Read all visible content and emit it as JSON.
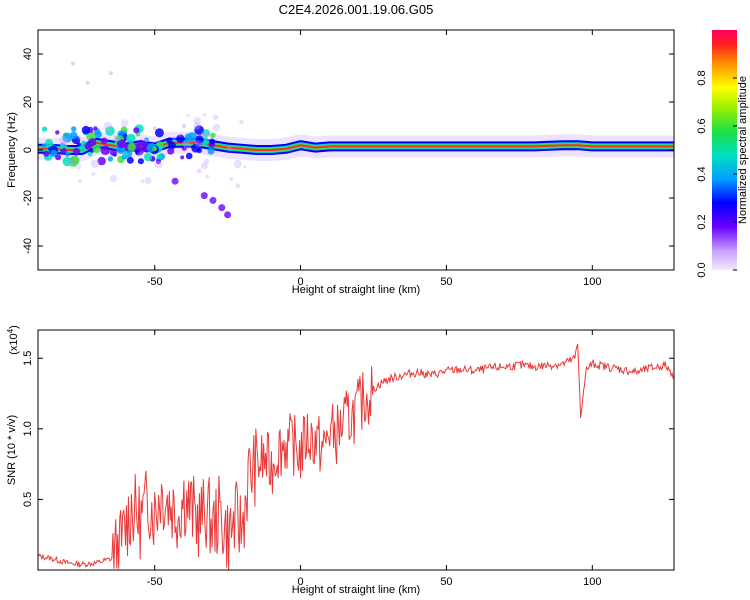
{
  "title": "C2E4.2026.001.19.06.G05",
  "colors": {
    "snr_line": "#e83a3a",
    "frequency_trace": "#ff2a2a",
    "frame": "#000000"
  },
  "chart_data": [
    {
      "type": "heatmap",
      "name": "spectrogram",
      "xlabel": "Height of straight line (km)",
      "ylabel": "Frequency (Hz)",
      "xlim": [
        -90,
        128
      ],
      "ylim": [
        -50,
        50
      ],
      "xticks": [
        -50,
        0,
        50,
        100
      ],
      "yticks": [
        -40,
        -20,
        0,
        20,
        40
      ],
      "colorbar": {
        "label": "Normalized spectral amplitude",
        "range": [
          0,
          1
        ],
        "ticks": [
          "0.0",
          "0.2",
          "0.4",
          "0.6",
          "0.8"
        ],
        "tick_values": [
          0,
          0.2,
          0.4,
          0.6,
          0.8
        ]
      },
      "dominant_frequency_trace": [
        {
          "x": -90,
          "y": 0.5
        },
        {
          "x": -85,
          "y": 0.5
        },
        {
          "x": -80,
          "y": 0
        },
        {
          "x": -75,
          "y": 0
        },
        {
          "x": -70,
          "y": 3
        },
        {
          "x": -65,
          "y": 2
        },
        {
          "x": -60,
          "y": 1
        },
        {
          "x": -55,
          "y": 2
        },
        {
          "x": -50,
          "y": 1
        },
        {
          "x": -45,
          "y": 3
        },
        {
          "x": -40,
          "y": 3
        },
        {
          "x": -35,
          "y": 3
        },
        {
          "x": -30,
          "y": 2
        },
        {
          "x": -25,
          "y": 1
        },
        {
          "x": -20,
          "y": 0.5
        },
        {
          "x": -15,
          "y": 0
        },
        {
          "x": -10,
          "y": 0
        },
        {
          "x": -5,
          "y": 0.5
        },
        {
          "x": 0,
          "y": 2
        },
        {
          "x": 5,
          "y": 1
        },
        {
          "x": 10,
          "y": 1.5
        },
        {
          "x": 20,
          "y": 1.5
        },
        {
          "x": 30,
          "y": 1.5
        },
        {
          "x": 40,
          "y": 1.5
        },
        {
          "x": 50,
          "y": 1.5
        },
        {
          "x": 60,
          "y": 1.5
        },
        {
          "x": 70,
          "y": 1.5
        },
        {
          "x": 80,
          "y": 1.5
        },
        {
          "x": 90,
          "y": 2
        },
        {
          "x": 95,
          "y": 2
        },
        {
          "x": 100,
          "y": 1.5
        },
        {
          "x": 110,
          "y": 1.5
        },
        {
          "x": 120,
          "y": 1.5
        },
        {
          "x": 128,
          "y": 1.5
        }
      ],
      "scatter_outliers": [
        {
          "x": -25,
          "y": -27
        },
        {
          "x": -27,
          "y": -24
        },
        {
          "x": -30,
          "y": -21
        },
        {
          "x": -33,
          "y": -19
        },
        {
          "x": -43,
          "y": -13
        },
        {
          "x": -78,
          "y": 36
        },
        {
          "x": -73,
          "y": 28
        },
        {
          "x": -65,
          "y": 32
        },
        {
          "x": -50,
          "y": 9
        },
        {
          "x": -40,
          "y": 10
        }
      ]
    },
    {
      "type": "line",
      "name": "snr",
      "xlabel": "Height of straight line (km)",
      "ylabel": "SNR (10 * v/v)",
      "yscale_label_base": "(x10",
      "yscale_label_exp": "4",
      "yscale_label_close": ")",
      "xlim": [
        -90,
        128
      ],
      "ylim": [
        0,
        1.7
      ],
      "xticks": [
        -50,
        0,
        50,
        100
      ],
      "yticks": [
        0.5,
        1.0,
        1.5
      ],
      "ytick_labels": [
        "0.5",
        "1.0",
        "1.5"
      ],
      "series": [
        {
          "name": "SNR",
          "x": [
            -90,
            -85,
            -80,
            -75,
            -70,
            -65,
            -62,
            -60,
            -58,
            -55,
            -52,
            -50,
            -48,
            -45,
            -42,
            -40,
            -38,
            -35,
            -32,
            -30,
            -28,
            -25,
            -22,
            -20,
            -18,
            -15,
            -12,
            -10,
            -8,
            -5,
            -2,
            0,
            2,
            5,
            8,
            10,
            12,
            15,
            18,
            20,
            22,
            25,
            28,
            30,
            35,
            40,
            45,
            50,
            55,
            60,
            65,
            70,
            75,
            80,
            85,
            90,
            92,
            94,
            95,
            96,
            98,
            100,
            105,
            110,
            115,
            120,
            125,
            128
          ],
          "y": [
            0.1,
            0.08,
            0.05,
            0.04,
            0.05,
            0.08,
            0.15,
            0.3,
            0.45,
            0.35,
            0.5,
            0.4,
            0.55,
            0.48,
            0.4,
            0.52,
            0.45,
            0.35,
            0.42,
            0.3,
            0.4,
            0.25,
            0.35,
            0.3,
            0.65,
            0.75,
            0.78,
            0.72,
            0.85,
            0.9,
            0.88,
            0.82,
            0.95,
            0.92,
            0.85,
            1.0,
            0.95,
            1.05,
            1.1,
            1.15,
            1.22,
            1.28,
            1.33,
            1.35,
            1.38,
            1.4,
            1.38,
            1.41,
            1.42,
            1.41,
            1.43,
            1.44,
            1.45,
            1.44,
            1.45,
            1.46,
            1.48,
            1.5,
            1.6,
            1.1,
            1.42,
            1.46,
            1.44,
            1.42,
            1.4,
            1.43,
            1.45,
            1.38
          ]
        }
      ]
    }
  ]
}
